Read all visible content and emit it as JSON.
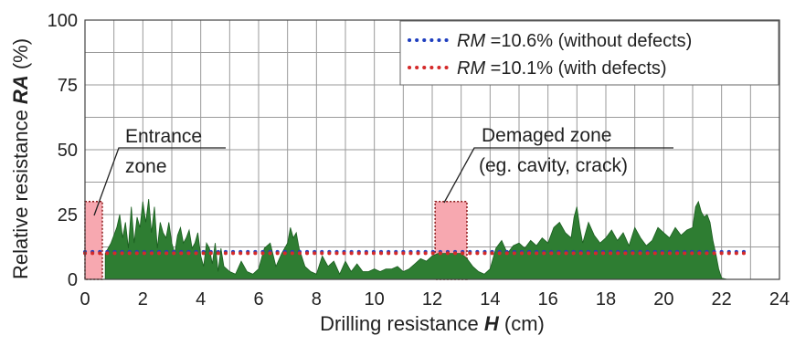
{
  "chart_data": {
    "type": "area",
    "xlabel_prefix": "Drilling resistance ",
    "xlabel_var": "H",
    "xlabel_unit": " (cm)",
    "ylabel_prefix": "Relative resistance ",
    "ylabel_var": "RA",
    "ylabel_unit": " (%)",
    "xlim": [
      0,
      24
    ],
    "ylim": [
      0,
      100
    ],
    "xticks": [
      0,
      2,
      4,
      6,
      8,
      10,
      12,
      14,
      16,
      18,
      20,
      22,
      24
    ],
    "yticks": [
      0,
      25,
      50,
      75,
      100
    ],
    "grid": true,
    "legend_position": "top-right",
    "series": [
      {
        "name": "Relative resistance RA",
        "color": "#2e7d32",
        "x": [
          0.7,
          0.9,
          1.1,
          1.2,
          1.3,
          1.4,
          1.5,
          1.6,
          1.7,
          1.8,
          1.9,
          2.0,
          2.1,
          2.2,
          2.3,
          2.4,
          2.5,
          2.6,
          2.7,
          2.8,
          2.9,
          3.0,
          3.1,
          3.2,
          3.3,
          3.4,
          3.5,
          3.6,
          3.7,
          3.8,
          3.9,
          4.0,
          4.1,
          4.2,
          4.3,
          4.4,
          4.5,
          4.6,
          4.7,
          4.8,
          5.0,
          5.2,
          5.4,
          5.6,
          5.8,
          6.0,
          6.2,
          6.4,
          6.6,
          6.8,
          7.0,
          7.1,
          7.2,
          7.3,
          7.4,
          7.6,
          7.8,
          8.0,
          8.2,
          8.4,
          8.6,
          8.8,
          9.0,
          9.2,
          9.4,
          9.6,
          9.8,
          10.0,
          10.2,
          10.4,
          10.6,
          10.8,
          11.0,
          11.2,
          11.4,
          11.6,
          11.8,
          12.0,
          12.2,
          12.4,
          12.6,
          12.8,
          13.0,
          13.2,
          13.4,
          13.6,
          13.8,
          14.0,
          14.2,
          14.4,
          14.6,
          14.8,
          15.0,
          15.2,
          15.4,
          15.6,
          15.8,
          16.0,
          16.2,
          16.4,
          16.6,
          16.8,
          16.9,
          17.0,
          17.1,
          17.2,
          17.4,
          17.6,
          17.8,
          18.0,
          18.2,
          18.4,
          18.6,
          18.8,
          19.0,
          19.2,
          19.4,
          19.6,
          19.8,
          20.0,
          20.2,
          20.4,
          20.6,
          20.8,
          21.0,
          21.1,
          21.2,
          21.3,
          21.4,
          21.5,
          21.6,
          21.7,
          21.8,
          21.9,
          22.0,
          22.2,
          22.8
        ],
        "values": [
          10,
          14,
          20,
          25,
          16,
          22,
          12,
          28,
          14,
          24,
          20,
          30,
          22,
          31,
          18,
          28,
          12,
          22,
          18,
          16,
          22,
          14,
          10,
          17,
          20,
          14,
          16,
          19,
          12,
          14,
          18,
          9,
          5,
          14,
          12,
          6,
          14,
          3,
          12,
          5,
          3,
          2,
          7,
          3,
          2,
          4,
          12,
          14,
          5,
          10,
          14,
          20,
          16,
          18,
          12,
          5,
          3,
          2,
          9,
          5,
          7,
          2,
          7,
          3,
          6,
          3,
          3,
          4,
          3,
          4,
          4,
          5,
          3,
          4,
          6,
          8,
          7,
          9,
          10,
          10,
          10,
          10,
          10,
          8,
          5,
          3,
          2,
          4,
          12,
          15,
          10,
          13,
          14,
          12,
          15,
          13,
          16,
          14,
          20,
          22,
          18,
          16,
          24,
          28,
          20,
          14,
          22,
          17,
          14,
          16,
          19,
          15,
          18,
          13,
          20,
          16,
          13,
          15,
          20,
          18,
          16,
          20,
          17,
          19,
          20,
          28,
          30,
          26,
          24,
          25,
          22,
          15,
          10,
          4,
          0.5,
          0,
          0
        ]
      }
    ],
    "reference_lines": [
      {
        "name": "RM",
        "eq": " =10.6% (without defects)",
        "value": 10.6,
        "color": "#1f3fbf",
        "x_range": [
          0,
          22.8
        ]
      },
      {
        "name": "RM",
        "eq": " =10.1% (with defects)",
        "value": 10.1,
        "color": "#d42a2a",
        "x_range": [
          0,
          22.8
        ]
      }
    ],
    "highlight_zones": [
      {
        "x_range": [
          0,
          0.6
        ],
        "y_max": 30,
        "fill": "#f7a8b0"
      },
      {
        "x_range": [
          12.1,
          13.2
        ],
        "y_max": 30,
        "fill": "#f7a8b0"
      }
    ],
    "annotations": [
      {
        "lines": [
          "Entrance",
          "zone"
        ]
      },
      {
        "lines": [
          "Demaged zone",
          "(eg. cavity, crack)"
        ]
      }
    ]
  }
}
